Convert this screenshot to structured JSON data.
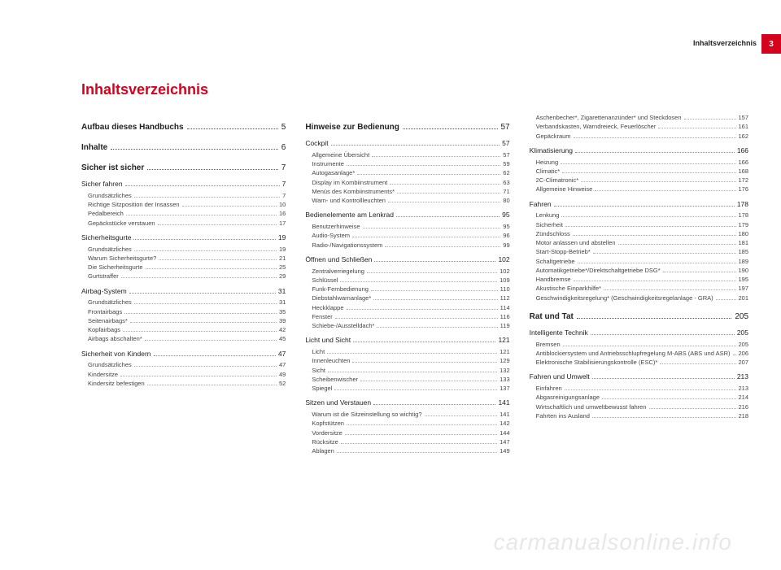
{
  "header": {
    "section_label": "Inhaltsverzeichnis",
    "page_number": "3"
  },
  "title": "Inhaltsverzeichnis",
  "watermark": "carmanualsonline.info",
  "style": {
    "accent_color": "#d4021d",
    "text_color": "#222222",
    "sub_text_color": "#444444",
    "dot_leader_color": "#aaaaaa",
    "background_color": "#ffffff",
    "watermark_color": "#e8e8e8",
    "title_fontsize_pt": 14,
    "section_fontsize_pt": 8,
    "entry_fontsize_pt": 6
  },
  "columns": [
    {
      "sections": [
        {
          "type": "section",
          "label": "Aufbau dieses Handbuchs",
          "page": "5"
        },
        {
          "type": "section",
          "label": "Inhalte",
          "page": "6"
        },
        {
          "type": "section",
          "label": "Sicher ist sicher",
          "page": "7"
        },
        {
          "type": "sub",
          "label": "Sicher fahren",
          "page": "7",
          "entries": [
            {
              "label": "Grundsätzliches",
              "page": "7"
            },
            {
              "label": "Richtige Sitzposition der Insassen",
              "page": "10"
            },
            {
              "label": "Pedalbereich",
              "page": "16"
            },
            {
              "label": "Gepäckstücke verstauen",
              "page": "17"
            }
          ]
        },
        {
          "type": "sub",
          "label": "Sicherheitsgurte",
          "page": "19",
          "entries": [
            {
              "label": "Grundsätzliches",
              "page": "19"
            },
            {
              "label": "Warum Sicherheitsgurte?",
              "page": "21"
            },
            {
              "label": "Die Sicherheitsgurte",
              "page": "25"
            },
            {
              "label": "Gurtstraffer",
              "page": "29"
            }
          ]
        },
        {
          "type": "sub",
          "label": "Airbag-System",
          "page": "31",
          "entries": [
            {
              "label": "Grundsätzliches",
              "page": "31"
            },
            {
              "label": "Frontairbags",
              "page": "35"
            },
            {
              "label": "Seitenairbags*",
              "page": "39"
            },
            {
              "label": "Kopfairbags",
              "page": "42"
            },
            {
              "label": "Airbags abschalten*",
              "page": "45"
            }
          ]
        },
        {
          "type": "sub",
          "label": "Sicherheit von Kindern",
          "page": "47",
          "entries": [
            {
              "label": "Grundsätzliches",
              "page": "47"
            },
            {
              "label": "Kindersitze",
              "page": "49"
            },
            {
              "label": "Kindersitz befestigen",
              "page": "52"
            }
          ]
        }
      ]
    },
    {
      "sections": [
        {
          "type": "section",
          "label": "Hinweise zur Bedienung",
          "page": "57"
        },
        {
          "type": "sub",
          "label": "Cockpit",
          "page": "57",
          "entries": [
            {
              "label": "Allgemeine Übersicht",
              "page": "57"
            },
            {
              "label": "Instrumente",
              "page": "59"
            },
            {
              "label": "Autogasanlage*",
              "page": "62"
            },
            {
              "label": "Display im Kombiinstrument",
              "page": "63"
            },
            {
              "label": "Menüs des Kombiinstruments*",
              "page": "71"
            },
            {
              "label": "Warn- und Kontrollleuchten",
              "page": "80"
            }
          ]
        },
        {
          "type": "sub",
          "label": "Bedienelemente am Lenkrad",
          "page": "95",
          "entries": [
            {
              "label": "Benutzerhinweise",
              "page": "95"
            },
            {
              "label": "Audio-System",
              "page": "96"
            },
            {
              "label": "Radio-/Navigationssystem",
              "page": "99"
            }
          ]
        },
        {
          "type": "sub",
          "label": "Öffnen und Schließen",
          "page": "102",
          "entries": [
            {
              "label": "Zentralverriegelung",
              "page": "102"
            },
            {
              "label": "Schlüssel",
              "page": "109"
            },
            {
              "label": "Funk-Fernbedienung",
              "page": "110"
            },
            {
              "label": "Diebstahlwarnanlage*",
              "page": "112"
            },
            {
              "label": "Heckklappe",
              "page": "114"
            },
            {
              "label": "Fenster",
              "page": "116"
            },
            {
              "label": "Schiebe-/Ausstelldach*",
              "page": "119"
            }
          ]
        },
        {
          "type": "sub",
          "label": "Licht und Sicht",
          "page": "121",
          "entries": [
            {
              "label": "Licht",
              "page": "121"
            },
            {
              "label": "Innenleuchten",
              "page": "129"
            },
            {
              "label": "Sicht",
              "page": "132"
            },
            {
              "label": "Scheibenwischer",
              "page": "133"
            },
            {
              "label": "Spiegel",
              "page": "137"
            }
          ]
        },
        {
          "type": "sub",
          "label": "Sitzen und Verstauen",
          "page": "141",
          "entries": [
            {
              "label": "Warum ist die Sitzeinstellung so wichtig?",
              "page": "141"
            },
            {
              "label": "Kopfstützen",
              "page": "142"
            },
            {
              "label": "Vordersitze",
              "page": "144"
            },
            {
              "label": "Rücksitze",
              "page": "147"
            },
            {
              "label": "Ablagen",
              "page": "149"
            }
          ]
        }
      ]
    },
    {
      "sections": [
        {
          "type": "entries-only",
          "entries": [
            {
              "label": "Aschenbecher*, Zigarettenanzünder* und Steckdosen",
              "page": "157"
            },
            {
              "label": "Verbandskasten, Warndreieck, Feuerlöscher",
              "page": "161"
            },
            {
              "label": "Gepäckraum",
              "page": "162"
            }
          ]
        },
        {
          "type": "sub",
          "label": "Klimatisierung",
          "page": "166",
          "entries": [
            {
              "label": "Heizung",
              "page": "166"
            },
            {
              "label": "Climatic*",
              "page": "168"
            },
            {
              "label": "2C-Climatronic*",
              "page": "172"
            },
            {
              "label": "Allgemeine Hinweise",
              "page": "176"
            }
          ]
        },
        {
          "type": "sub",
          "label": "Fahren",
          "page": "178",
          "entries": [
            {
              "label": "Lenkung",
              "page": "178"
            },
            {
              "label": "Sicherheit",
              "page": "179"
            },
            {
              "label": "Zündschloss",
              "page": "180"
            },
            {
              "label": "Motor anlassen und abstellen",
              "page": "181"
            },
            {
              "label": "Start-Stopp-Betrieb*",
              "page": "185"
            },
            {
              "label": "Schaltgetriebe",
              "page": "189"
            },
            {
              "label": "Automatikgetriebe*/Direktschaltgetriebe DSG*",
              "page": "190"
            },
            {
              "label": "Handbremse",
              "page": "195"
            },
            {
              "label": "Akustische Einparkhilfe*",
              "page": "197"
            },
            {
              "label": "Geschwindigkeitsregelung* (Geschwindigkeitsregelanlage - GRA)",
              "page": "201"
            }
          ]
        },
        {
          "type": "section",
          "label": "Rat und Tat",
          "page": "205"
        },
        {
          "type": "sub",
          "label": "Intelligente Technik",
          "page": "205",
          "entries": [
            {
              "label": "Bremsen",
              "page": "205"
            },
            {
              "label": "Antiblockiersystem und Antriebsschlupfregelung M-ABS (ABS und ASR)",
              "page": "206"
            },
            {
              "label": "Elektronische Stabilisierungskontrolle (ESC)*",
              "page": "207"
            }
          ]
        },
        {
          "type": "sub",
          "label": "Fahren und Umwelt",
          "page": "213",
          "entries": [
            {
              "label": "Einfahren",
              "page": "213"
            },
            {
              "label": "Abgasreinigungsanlage",
              "page": "214"
            },
            {
              "label": "Wirtschaftlich und umweltbewusst fahren",
              "page": "216"
            },
            {
              "label": "Fahrten ins Ausland",
              "page": "218"
            }
          ]
        }
      ]
    }
  ]
}
